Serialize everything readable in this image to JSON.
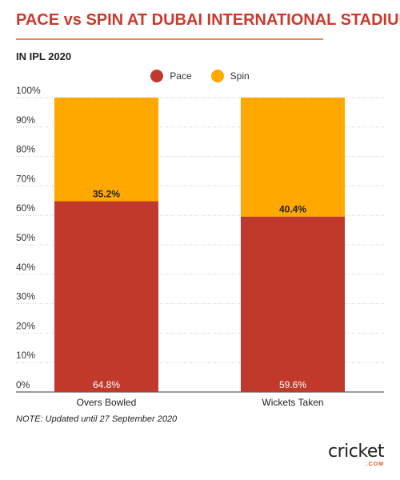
{
  "title": "PACE vs SPIN AT DUBAI INTERNATIONAL STADIUM",
  "subtitle": "IN IPL 2020",
  "note": "NOTE: Updated until 27 September 2020",
  "brand": {
    "name": "cricket",
    "sub": ".COM"
  },
  "colors": {
    "title": "#cb3a2c",
    "pace": "#c0392b",
    "spin": "#ffa800"
  },
  "chart_data": {
    "type": "bar",
    "stacked": true,
    "categories": [
      "Overs Bowled",
      "Wickets Taken"
    ],
    "series": [
      {
        "name": "Pace",
        "values": [
          64.8,
          59.6
        ],
        "labels": [
          "64.8%",
          "59.6%"
        ]
      },
      {
        "name": "Spin",
        "values": [
          35.2,
          40.4
        ],
        "labels": [
          "35.2%",
          "40.4%"
        ]
      }
    ],
    "ylim": [
      0,
      100
    ],
    "yticks": [
      "0%",
      "10%",
      "20%",
      "30%",
      "40%",
      "50%",
      "60%",
      "70%",
      "80%",
      "90%",
      "100%"
    ],
    "xlabel": "",
    "ylabel": "",
    "grid": "horizontal dotted",
    "legend": "top-center"
  }
}
